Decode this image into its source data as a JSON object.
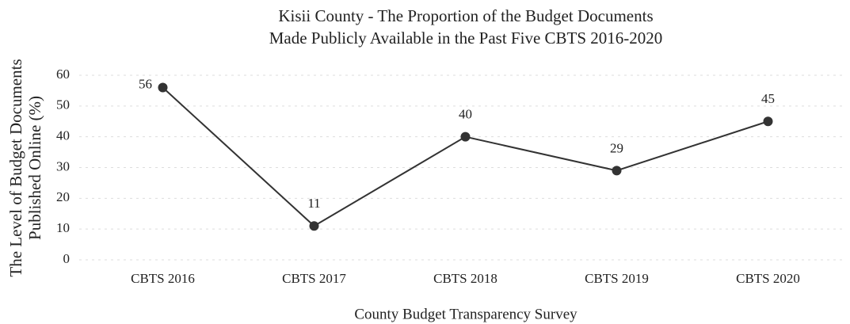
{
  "chart_data": {
    "type": "line",
    "title": [
      "Kisii County - The Proportion of the Budget Documents",
      "Made Publicly Available in the Past Five CBTS 2016-2020"
    ],
    "y_label": [
      "The Level of Budget Documents",
      "Published Online (%)"
    ],
    "x_label": "County Budget Transparency Survey",
    "categories": [
      "CBTS 2016",
      "CBTS 2017",
      "CBTS 2018",
      "CBTS 2019",
      "CBTS 2020"
    ],
    "values": [
      56,
      11,
      40,
      29,
      45
    ],
    "color": "#333333",
    "ylim": [
      0,
      60
    ],
    "yticks": [
      0,
      10,
      20,
      30,
      40,
      50,
      60
    ],
    "grid": true
  }
}
